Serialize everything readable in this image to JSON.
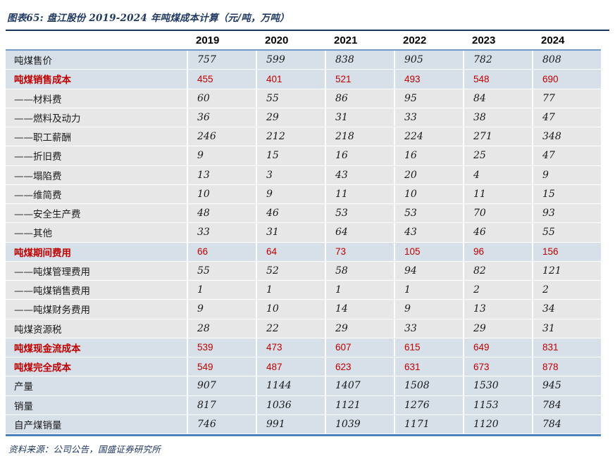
{
  "colors": {
    "accent_navy": "#1f3864",
    "highlight_red": "#c00000",
    "band_blue": "#d7dfe9",
    "band_gray": "#e8e7e7",
    "rule_navy": "#17365d",
    "rule_blue": "#4f81bd"
  },
  "chart_data": {
    "type": "table",
    "title": "图表65: 盘江股份 2019-2024 年吨煤成本计算（元/吨，万吨）",
    "unit": "元/吨，万吨",
    "source_note": "资料来源：公司公告，国盛证券研究所",
    "layout_hints": {
      "band_blue_rows": "summary / top-level rows",
      "band_gray_rows": "sub-item rows",
      "red_rows": "cost subtotal rows highlighted in red"
    },
    "columns": [
      "2019",
      "2020",
      "2021",
      "2022",
      "2023",
      "2024"
    ],
    "rows": [
      {
        "label": "吨煤售价",
        "values": [
          "757",
          "599",
          "838",
          "905",
          "782",
          "808"
        ],
        "style": "normal",
        "band": "blue"
      },
      {
        "label": "吨煤销售成本",
        "values": [
          "455",
          "401",
          "521",
          "493",
          "548",
          "690"
        ],
        "style": "red",
        "band": "blue"
      },
      {
        "label": "——材料费",
        "values": [
          "60",
          "55",
          "86",
          "95",
          "84",
          "77"
        ],
        "style": "normal",
        "band": "gray"
      },
      {
        "label": "——燃料及动力",
        "values": [
          "36",
          "29",
          "31",
          "33",
          "38",
          "47"
        ],
        "style": "normal",
        "band": "gray"
      },
      {
        "label": "——职工薪酬",
        "values": [
          "246",
          "212",
          "218",
          "224",
          "271",
          "348"
        ],
        "style": "normal",
        "band": "gray"
      },
      {
        "label": "——折旧费",
        "values": [
          "9",
          "15",
          "16",
          "16",
          "25",
          "47"
        ],
        "style": "normal",
        "band": "gray"
      },
      {
        "label": "——塌陷费",
        "values": [
          "13",
          "3",
          "43",
          "20",
          "4",
          "9"
        ],
        "style": "normal",
        "band": "gray"
      },
      {
        "label": "——维简费",
        "values": [
          "10",
          "9",
          "11",
          "10",
          "11",
          "15"
        ],
        "style": "normal",
        "band": "gray"
      },
      {
        "label": "——安全生产费",
        "values": [
          "48",
          "46",
          "53",
          "53",
          "70",
          "93"
        ],
        "style": "normal",
        "band": "gray"
      },
      {
        "label": "——其他",
        "values": [
          "33",
          "31",
          "64",
          "43",
          "46",
          "55"
        ],
        "style": "normal",
        "band": "gray"
      },
      {
        "label": "吨煤期间费用",
        "values": [
          "66",
          "64",
          "73",
          "105",
          "96",
          "156"
        ],
        "style": "red",
        "band": "blue"
      },
      {
        "label": "——吨煤管理费用",
        "values": [
          "55",
          "52",
          "58",
          "94",
          "82",
          "121"
        ],
        "style": "normal",
        "band": "gray"
      },
      {
        "label": "——吨煤销售费用",
        "values": [
          "1",
          "1",
          "1",
          "1",
          "2",
          "2"
        ],
        "style": "normal",
        "band": "gray"
      },
      {
        "label": "——吨煤财务费用",
        "values": [
          "9",
          "10",
          "14",
          "9",
          "13",
          "34"
        ],
        "style": "normal",
        "band": "gray"
      },
      {
        "label": "吨煤资源税",
        "values": [
          "28",
          "22",
          "29",
          "33",
          "29",
          "31"
        ],
        "style": "normal",
        "band": "gray"
      },
      {
        "label": "吨煤现金流成本",
        "values": [
          "539",
          "473",
          "607",
          "615",
          "649",
          "831"
        ],
        "style": "red",
        "band": "blue"
      },
      {
        "label": "吨煤完全成本",
        "values": [
          "549",
          "487",
          "623",
          "631",
          "673",
          "878"
        ],
        "style": "red",
        "band": "blue"
      },
      {
        "label": "产量",
        "values": [
          "907",
          "1144",
          "1407",
          "1508",
          "1530",
          "945"
        ],
        "style": "normal",
        "band": "blue"
      },
      {
        "label": "销量",
        "values": [
          "817",
          "1036",
          "1121",
          "1276",
          "1153",
          "784"
        ],
        "style": "normal",
        "band": "blue"
      },
      {
        "label": "自产煤销量",
        "values": [
          "746",
          "991",
          "1039",
          "1171",
          "1120",
          "784"
        ],
        "style": "normal",
        "band": "blue"
      }
    ]
  }
}
